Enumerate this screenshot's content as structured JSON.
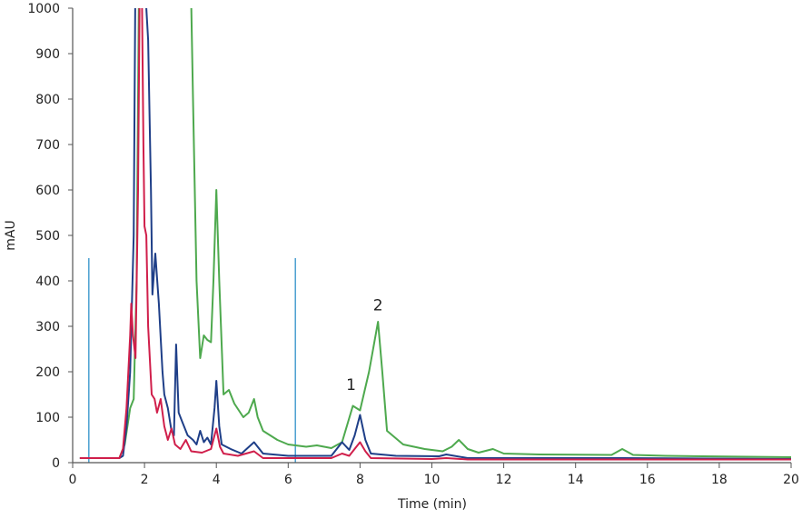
{
  "chart_data": {
    "type": "line",
    "title": "",
    "xlabel": "Time (min)",
    "ylabel": "mAU",
    "xlim": [
      0,
      20
    ],
    "ylim": [
      0,
      1000
    ],
    "xticks": [
      0,
      2,
      4,
      6,
      8,
      10,
      12,
      14,
      16,
      18,
      20
    ],
    "yticks": [
      0,
      100,
      200,
      300,
      400,
      500,
      600,
      700,
      800,
      900,
      1000
    ],
    "grid": false,
    "legend": "none",
    "series": [
      {
        "color": "#4ea94e",
        "points": [
          [
            0.2,
            10
          ],
          [
            1.3,
            10
          ],
          [
            1.45,
            40
          ],
          [
            1.6,
            120
          ],
          [
            1.7,
            140
          ],
          [
            1.78,
            400
          ],
          [
            1.85,
            1100
          ],
          [
            3.28,
            1100
          ],
          [
            3.35,
            800
          ],
          [
            3.45,
            400
          ],
          [
            3.55,
            230
          ],
          [
            3.65,
            280
          ],
          [
            3.75,
            270
          ],
          [
            3.85,
            265
          ],
          [
            3.92,
            400
          ],
          [
            4.0,
            600
          ],
          [
            4.08,
            400
          ],
          [
            4.2,
            150
          ],
          [
            4.35,
            160
          ],
          [
            4.5,
            130
          ],
          [
            4.75,
            100
          ],
          [
            4.9,
            110
          ],
          [
            5.05,
            140
          ],
          [
            5.15,
            100
          ],
          [
            5.3,
            70
          ],
          [
            5.5,
            60
          ],
          [
            5.7,
            50
          ],
          [
            6.0,
            40
          ],
          [
            6.5,
            35
          ],
          [
            6.8,
            38
          ],
          [
            7.2,
            32
          ],
          [
            7.5,
            45
          ],
          [
            7.8,
            125
          ],
          [
            8.0,
            115
          ],
          [
            8.25,
            200
          ],
          [
            8.5,
            310
          ],
          [
            8.62,
            200
          ],
          [
            8.75,
            70
          ],
          [
            9.2,
            40
          ],
          [
            9.8,
            30
          ],
          [
            10.3,
            25
          ],
          [
            10.55,
            35
          ],
          [
            10.75,
            50
          ],
          [
            11.0,
            30
          ],
          [
            11.3,
            22
          ],
          [
            11.7,
            30
          ],
          [
            12.0,
            20
          ],
          [
            13,
            18
          ],
          [
            15.0,
            17
          ],
          [
            15.3,
            30
          ],
          [
            15.6,
            17
          ],
          [
            16.5,
            15
          ],
          [
            20,
            12
          ]
        ]
      },
      {
        "color": "#1f3f88",
        "points": [
          [
            0.2,
            10
          ],
          [
            1.3,
            10
          ],
          [
            1.4,
            15
          ],
          [
            1.5,
            80
          ],
          [
            1.6,
            200
          ],
          [
            1.7,
            500
          ],
          [
            1.75,
            1100
          ],
          [
            2.0,
            1100
          ],
          [
            2.05,
            1000
          ],
          [
            2.1,
            930
          ],
          [
            2.18,
            600
          ],
          [
            2.22,
            370
          ],
          [
            2.3,
            460
          ],
          [
            2.4,
            350
          ],
          [
            2.5,
            200
          ],
          [
            2.55,
            150
          ],
          [
            2.65,
            120
          ],
          [
            2.75,
            70
          ],
          [
            2.82,
            60
          ],
          [
            2.88,
            260
          ],
          [
            2.95,
            110
          ],
          [
            3.05,
            90
          ],
          [
            3.2,
            60
          ],
          [
            3.35,
            50
          ],
          [
            3.45,
            40
          ],
          [
            3.55,
            70
          ],
          [
            3.65,
            45
          ],
          [
            3.75,
            55
          ],
          [
            3.85,
            40
          ],
          [
            3.95,
            120
          ],
          [
            4.0,
            180
          ],
          [
            4.08,
            80
          ],
          [
            4.15,
            40
          ],
          [
            4.4,
            30
          ],
          [
            4.7,
            20
          ],
          [
            5.05,
            45
          ],
          [
            5.3,
            20
          ],
          [
            6.0,
            15
          ],
          [
            7.2,
            15
          ],
          [
            7.5,
            45
          ],
          [
            7.7,
            28
          ],
          [
            7.85,
            60
          ],
          [
            8.0,
            105
          ],
          [
            8.15,
            50
          ],
          [
            8.3,
            20
          ],
          [
            9.0,
            15
          ],
          [
            10.2,
            14
          ],
          [
            10.4,
            18
          ],
          [
            11.0,
            10
          ],
          [
            15.3,
            10
          ],
          [
            20,
            8
          ]
        ]
      },
      {
        "color": "#d01f4b",
        "points": [
          [
            0.2,
            10
          ],
          [
            1.3,
            10
          ],
          [
            1.4,
            30
          ],
          [
            1.5,
            120
          ],
          [
            1.6,
            280
          ],
          [
            1.63,
            350
          ],
          [
            1.68,
            280
          ],
          [
            1.75,
            230
          ],
          [
            1.82,
            600
          ],
          [
            1.87,
            1100
          ],
          [
            1.92,
            1100
          ],
          [
            1.97,
            700
          ],
          [
            2.0,
            520
          ],
          [
            2.05,
            500
          ],
          [
            2.1,
            300
          ],
          [
            2.2,
            150
          ],
          [
            2.28,
            140
          ],
          [
            2.35,
            110
          ],
          [
            2.45,
            140
          ],
          [
            2.55,
            80
          ],
          [
            2.65,
            50
          ],
          [
            2.75,
            75
          ],
          [
            2.85,
            40
          ],
          [
            3.0,
            30
          ],
          [
            3.15,
            50
          ],
          [
            3.3,
            25
          ],
          [
            3.6,
            22
          ],
          [
            3.85,
            30
          ],
          [
            3.95,
            60
          ],
          [
            4.0,
            75
          ],
          [
            4.1,
            35
          ],
          [
            4.2,
            20
          ],
          [
            4.6,
            15
          ],
          [
            5.05,
            25
          ],
          [
            5.3,
            10
          ],
          [
            7.2,
            10
          ],
          [
            7.5,
            20
          ],
          [
            7.7,
            15
          ],
          [
            7.9,
            35
          ],
          [
            8.0,
            45
          ],
          [
            8.15,
            25
          ],
          [
            8.3,
            10
          ],
          [
            10.0,
            8
          ],
          [
            10.4,
            10
          ],
          [
            11,
            7
          ],
          [
            20,
            7
          ]
        ]
      }
    ],
    "markers": [
      {
        "x": 0.45,
        "y": 450,
        "color": "#4a9fd0"
      },
      {
        "x": 6.2,
        "y": 450,
        "color": "#4a9fd0"
      }
    ],
    "annotations": [
      {
        "text": "1",
        "x": 7.75,
        "y": 160
      },
      {
        "text": "2",
        "x": 8.5,
        "y": 335
      }
    ]
  }
}
